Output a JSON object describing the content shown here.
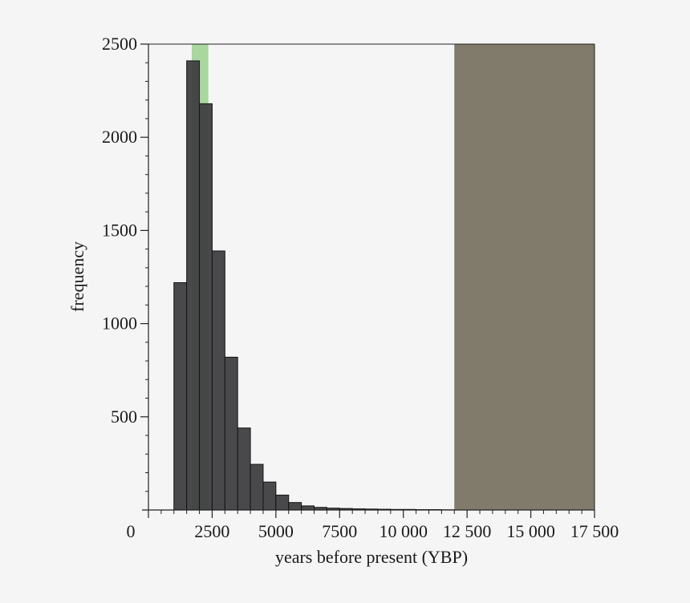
{
  "chart_data": {
    "type": "bar",
    "title": "",
    "xlabel": "years before present (YBP)",
    "ylabel": "frequency",
    "xlim": [
      0,
      17500
    ],
    "ylim": [
      0,
      2500
    ],
    "x_ticks": [
      0,
      2500,
      5000,
      7500,
      10000,
      12500,
      15000,
      17500
    ],
    "x_tick_labels": [
      "0",
      "2500",
      "5000",
      "7500",
      "10 000",
      "12 500",
      "15 000",
      "17 500"
    ],
    "y_ticks": [
      500,
      1000,
      1500,
      2000,
      2500
    ],
    "y_tick_labels": [
      "500",
      "1000",
      "1500",
      "2000",
      "2500"
    ],
    "bin_width": 500,
    "bins": [
      {
        "x0": 1000,
        "value": 1220
      },
      {
        "x0": 1500,
        "value": 2410
      },
      {
        "x0": 2000,
        "value": 2180
      },
      {
        "x0": 2500,
        "value": 1390
      },
      {
        "x0": 3000,
        "value": 820
      },
      {
        "x0": 3500,
        "value": 440
      },
      {
        "x0": 4000,
        "value": 245
      },
      {
        "x0": 4500,
        "value": 150
      },
      {
        "x0": 5000,
        "value": 80
      },
      {
        "x0": 5500,
        "value": 40
      },
      {
        "x0": 6000,
        "value": 22
      },
      {
        "x0": 6500,
        "value": 14
      },
      {
        "x0": 7000,
        "value": 10
      },
      {
        "x0": 7500,
        "value": 8
      },
      {
        "x0": 8000,
        "value": 6
      },
      {
        "x0": 8500,
        "value": 5
      },
      {
        "x0": 9000,
        "value": 4
      },
      {
        "x0": 9500,
        "value": 3
      },
      {
        "x0": 10000,
        "value": 3
      },
      {
        "x0": 10500,
        "value": 2
      },
      {
        "x0": 11000,
        "value": 2
      },
      {
        "x0": 11500,
        "value": 1
      }
    ],
    "shaded_regions": [
      {
        "x_start": 1700,
        "x_end": 2350,
        "color": "#7fc66f",
        "opacity": 0.65
      },
      {
        "x_start": 12000,
        "x_end": 17500,
        "color": "#807b6a",
        "opacity": 1
      }
    ],
    "bar_color": "#3f3f41",
    "bar_edge_color": "#141414",
    "grid": false,
    "legend": "none"
  }
}
